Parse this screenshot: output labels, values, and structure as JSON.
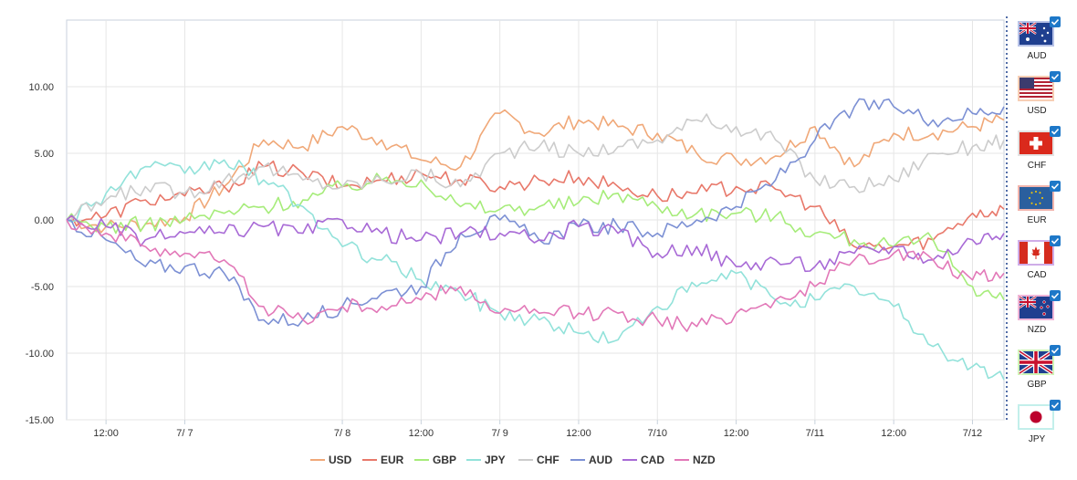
{
  "chart_data": {
    "type": "line",
    "ylim": [
      -15,
      15
    ],
    "y_ticks": [
      "10.00",
      "5.00",
      "0.00",
      "-5.00",
      "-10.00",
      "-15.00"
    ],
    "y_tick_values": [
      10,
      5,
      0,
      -5,
      -10,
      -15
    ],
    "x_ticks": [
      "12:00",
      "7/ 7",
      "7/ 8",
      "12:00",
      "7/ 9",
      "12:00",
      "7/10",
      "12:00",
      "7/11",
      "12:00",
      "7/12"
    ],
    "x_tick_values": [
      0.5,
      1,
      2,
      2.5,
      3,
      3.5,
      4,
      4.5,
      5,
      5.5,
      6
    ],
    "xlim": [
      0.25,
      6.2
    ],
    "grid": true,
    "legend": "bottom",
    "series": [
      {
        "name": "USD",
        "color": "#f0a878",
        "x": [
          0.25,
          0.5,
          0.75,
          1,
          1.25,
          1.5,
          1.75,
          2,
          2.25,
          2.5,
          2.75,
          3,
          3.25,
          3.5,
          3.75,
          4,
          4.25,
          4.5,
          4.75,
          5,
          5.25,
          5.5,
          5.75,
          6,
          6.2
        ],
        "y": [
          0,
          -0.5,
          -0.3,
          0.2,
          2.5,
          6,
          5.5,
          7,
          6,
          4.5,
          4,
          8,
          6.5,
          7.5,
          7,
          6.5,
          5,
          4.5,
          4.8,
          7,
          4,
          6.5,
          6.5,
          7,
          7.5
        ]
      },
      {
        "name": "EUR",
        "color": "#e8786a",
        "x": [
          0.25,
          0.5,
          0.75,
          1,
          1.25,
          1.5,
          1.75,
          2,
          2.25,
          2.5,
          2.75,
          3,
          3.25,
          3.5,
          3.75,
          4,
          4.25,
          4.5,
          4.75,
          5,
          5.25,
          5.5,
          5.75,
          6,
          6.2
        ],
        "y": [
          0,
          0.3,
          1.5,
          1.8,
          2.5,
          4,
          3.5,
          2.5,
          3,
          3.5,
          3,
          2.5,
          3,
          3.2,
          2.5,
          1.8,
          2,
          2.5,
          2.3,
          1,
          -2,
          -2,
          -1.5,
          0.5,
          0.8
        ]
      },
      {
        "name": "GBP",
        "color": "#a6ec7a",
        "x": [
          0.25,
          0.5,
          0.75,
          1,
          1.25,
          1.5,
          1.75,
          2,
          2.25,
          2.5,
          2.75,
          3,
          3.25,
          3.5,
          3.75,
          4,
          4.25,
          4.5,
          4.75,
          5,
          5.25,
          5.5,
          5.75,
          6,
          6.2
        ],
        "y": [
          0,
          -0.5,
          -0.3,
          0,
          0.5,
          1,
          1.5,
          2.5,
          3,
          3,
          1,
          0.8,
          1,
          1.3,
          2,
          1,
          0.5,
          0.5,
          0.3,
          -1,
          -1.5,
          -2,
          -1.5,
          -5,
          -6
        ]
      },
      {
        "name": "JPY",
        "color": "#92e2da",
        "x": [
          0.25,
          0.5,
          0.75,
          1,
          1.25,
          1.5,
          1.75,
          2,
          2.25,
          2.5,
          2.75,
          3,
          3.25,
          3.5,
          3.75,
          4,
          4.25,
          4.5,
          4.75,
          5,
          5.25,
          5.5,
          5.75,
          6,
          6.2
        ],
        "y": [
          0,
          2,
          4,
          3.5,
          4.5,
          3,
          1,
          -2,
          -3,
          -4.5,
          -5.5,
          -7,
          -7.5,
          -8.5,
          -9,
          -6.5,
          -5,
          -4,
          -6,
          -6,
          -5,
          -6.5,
          -9.5,
          -11,
          -12
        ]
      },
      {
        "name": "CHF",
        "color": "#cccccc",
        "x": [
          0.25,
          0.5,
          0.75,
          1,
          1.25,
          1.5,
          1.75,
          2,
          2.25,
          2.5,
          2.75,
          3,
          3.25,
          3.5,
          3.75,
          4,
          4.25,
          4.5,
          4.75,
          5,
          5.25,
          5.5,
          5.75,
          6,
          6.2
        ],
        "y": [
          0,
          1.5,
          2.5,
          2,
          3,
          4,
          3,
          2.5,
          3,
          3.5,
          2.5,
          5,
          5.5,
          5,
          5.5,
          6,
          7.5,
          7,
          6,
          3,
          2.5,
          3,
          5,
          5.5,
          6
        ]
      },
      {
        "name": "AUD",
        "color": "#7c90d4",
        "x": [
          0.25,
          0.5,
          0.75,
          1,
          1.25,
          1.5,
          1.75,
          2,
          2.25,
          2.5,
          2.75,
          3,
          3.25,
          3.5,
          3.75,
          4,
          4.25,
          4.5,
          4.75,
          5,
          5.25,
          5.5,
          5.75,
          6,
          6.2
        ],
        "y": [
          0,
          -1.5,
          -3.5,
          -3.5,
          -4,
          -7.5,
          -7.5,
          -6.5,
          -5.5,
          -5,
          -1,
          0,
          -1.5,
          -0.5,
          -0.5,
          -1,
          0,
          1,
          3,
          6,
          8.5,
          8.5,
          7.5,
          8,
          8.5
        ]
      },
      {
        "name": "CAD",
        "color": "#a86ad6",
        "x": [
          0.25,
          0.5,
          0.75,
          1,
          1.25,
          1.5,
          1.75,
          2,
          2.25,
          2.5,
          2.75,
          3,
          3.25,
          3.5,
          3.75,
          4,
          4.25,
          4.5,
          4.75,
          5,
          5.25,
          5.5,
          5.75,
          6,
          6.2
        ],
        "y": [
          0,
          -0.5,
          -1.5,
          -1,
          -1,
          -0.5,
          -1,
          0,
          -1,
          -1.5,
          -1,
          -1,
          -1.5,
          -0.5,
          -1,
          -2.5,
          -2,
          -3.5,
          -3,
          -3.5,
          -2.5,
          -2,
          -3,
          -1.5,
          -1
        ]
      },
      {
        "name": "NZD",
        "color": "#e278b8",
        "x": [
          0.25,
          0.5,
          0.75,
          1,
          1.25,
          1.5,
          1.75,
          2,
          2.25,
          2.5,
          2.75,
          3,
          3.25,
          3.5,
          3.75,
          4,
          4.25,
          4.5,
          4.75,
          5,
          5.25,
          5.5,
          5.75,
          6,
          6.2
        ],
        "y": [
          0,
          -1,
          -2,
          -2.5,
          -3,
          -6.5,
          -7.5,
          -6.5,
          -6.5,
          -6,
          -5,
          -7,
          -7,
          -7,
          -7,
          -7.5,
          -8,
          -7,
          -6,
          -5,
          -3,
          -2.5,
          -3,
          -4.5,
          -4
        ]
      }
    ]
  },
  "flags": [
    {
      "code": "AUD",
      "checked": true,
      "icon": "australia-flag-icon"
    },
    {
      "code": "USD",
      "checked": true,
      "icon": "usa-flag-icon"
    },
    {
      "code": "CHF",
      "checked": true,
      "icon": "switzerland-flag-icon"
    },
    {
      "code": "EUR",
      "checked": true,
      "icon": "eu-flag-icon"
    },
    {
      "code": "CAD",
      "checked": true,
      "icon": "canada-flag-icon"
    },
    {
      "code": "NZD",
      "checked": true,
      "icon": "new-zealand-flag-icon"
    },
    {
      "code": "GBP",
      "checked": true,
      "icon": "uk-flag-icon"
    },
    {
      "code": "JPY",
      "checked": true,
      "icon": "japan-flag-icon"
    }
  ],
  "colors": {
    "grid": "#e6e6e6",
    "axis": "#c8d2dc",
    "accent": "#1e78c8",
    "checkbox": "#1e78c8",
    "divider": "#1a3e8c"
  }
}
